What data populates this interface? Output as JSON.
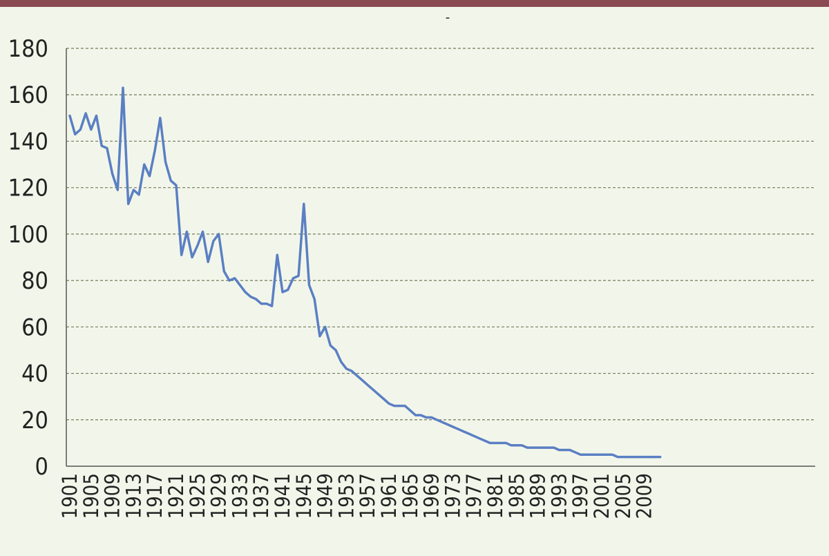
{
  "colors": {
    "header_bar": "#8a4a52",
    "background": "#f2f6ea",
    "line": "#5a7fc3",
    "grid": "#6f7a5a"
  },
  "chart_data": {
    "type": "line",
    "title": "-",
    "xlabel": "",
    "ylabel": "",
    "ylim": [
      0,
      180
    ],
    "yticks": [
      0,
      20,
      40,
      60,
      80,
      100,
      120,
      140,
      160,
      180
    ],
    "xticks": [
      "1901",
      "1905",
      "1909",
      "1913",
      "1917",
      "1921",
      "1925",
      "1929",
      "1933",
      "1937",
      "1941",
      "1945",
      "1949",
      "1953",
      "1957",
      "1961",
      "1965",
      "1969",
      "1973",
      "1977",
      "1981",
      "1985",
      "1989",
      "1993",
      "1997",
      "2001",
      "2005",
      "2009"
    ],
    "grid": "horizontal dashed",
    "legend": "none",
    "series": [
      {
        "x": [
          1901,
          1902,
          1903,
          1904,
          1905,
          1906,
          1907,
          1908,
          1909,
          1910,
          1911,
          1912,
          1913,
          1914,
          1915,
          1916,
          1917,
          1918,
          1919,
          1920,
          1921,
          1922,
          1923,
          1924,
          1925,
          1926,
          1927,
          1928,
          1929,
          1930,
          1931,
          1932,
          1933,
          1934,
          1935,
          1936,
          1937,
          1938,
          1939,
          1940,
          1941,
          1942,
          1943,
          1944,
          1945,
          1946,
          1947,
          1948,
          1949,
          1950,
          1951,
          1952,
          1953,
          1954,
          1955,
          1956,
          1957,
          1958,
          1959,
          1960,
          1961,
          1962,
          1963,
          1964,
          1965,
          1966,
          1967,
          1968,
          1969,
          1970,
          1971,
          1972,
          1973,
          1974,
          1975,
          1976,
          1977,
          1978,
          1979,
          1980,
          1981,
          1982,
          1983,
          1984,
          1985,
          1986,
          1987,
          1988,
          1989,
          1990,
          1991,
          1992,
          1993,
          1994,
          1995,
          1996,
          1997,
          1998,
          1999,
          2000,
          2001,
          2002,
          2003,
          2004,
          2005,
          2006,
          2007,
          2008,
          2009,
          2010,
          2011,
          2012
        ],
        "y": [
          151,
          143,
          145,
          152,
          145,
          151,
          138,
          137,
          126,
          119,
          163,
          113,
          119,
          117,
          130,
          125,
          136,
          150,
          131,
          123,
          121,
          91,
          101,
          90,
          95,
          101,
          88,
          97,
          100,
          84,
          80,
          81,
          78,
          75,
          73,
          72,
          70,
          70,
          69,
          91,
          75,
          76,
          81,
          82,
          113,
          78,
          72,
          56,
          60,
          52,
          50,
          45,
          42,
          41,
          39,
          37,
          35,
          33,
          31,
          29,
          27,
          26,
          26,
          26,
          24,
          22,
          22,
          21,
          21,
          20,
          19,
          18,
          17,
          16,
          15,
          14,
          13,
          12,
          11,
          10,
          10,
          10,
          10,
          9,
          9,
          9,
          8,
          8,
          8,
          8,
          8,
          8,
          7,
          7,
          7,
          6,
          5,
          5,
          5,
          5,
          5,
          5,
          5,
          4,
          4,
          4,
          4,
          4,
          4,
          4,
          4,
          4
        ]
      }
    ]
  }
}
